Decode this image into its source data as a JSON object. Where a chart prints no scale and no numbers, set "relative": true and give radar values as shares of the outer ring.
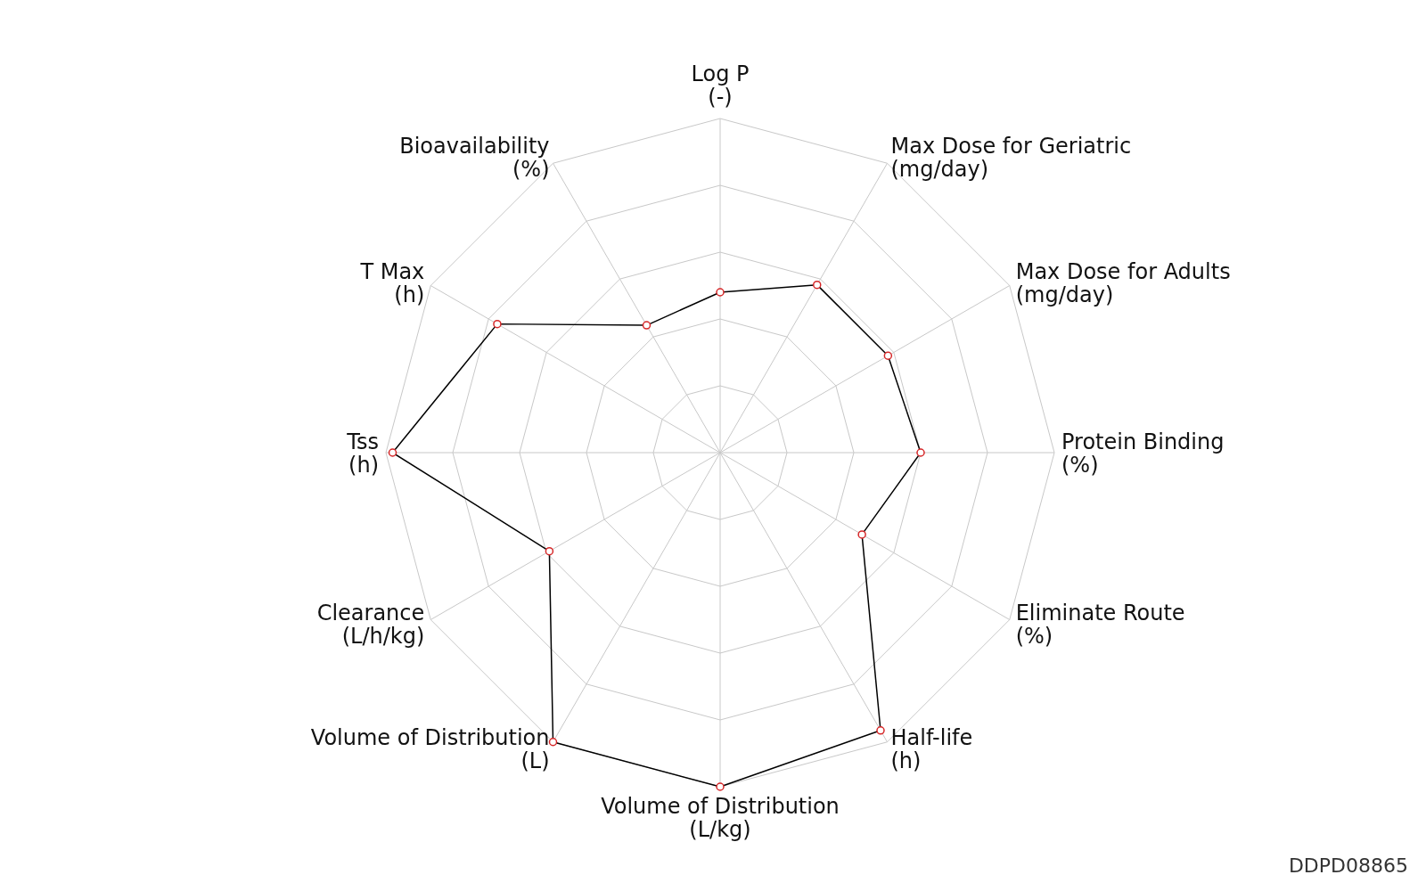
{
  "chart_data": {
    "type": "radar",
    "relative": true,
    "grid": true,
    "marker": "circle",
    "categories": [
      "Log P\n(-)",
      "Max Dose for Geriatric\n(mg/day)",
      "Max Dose for Adults\n(mg/day)",
      "Protein Binding\n(%)",
      "Eliminate Route\n(%)",
      "Half-life\n(h)",
      "Volume of Distribution\n(L/kg)",
      "Volume of Distribution\n(L)",
      "Clearance\n(L/h/kg)",
      "Tss\n(h)",
      "T Max\n(h)",
      "Bioavailability\n(%)"
    ],
    "series": [
      {
        "color": "#000000",
        "values": [
          0.48,
          0.58,
          0.58,
          0.6,
          0.49,
          0.96,
          1.0,
          1.0,
          0.59,
          0.98,
          0.77,
          0.44
        ]
      }
    ],
    "annotations": [
      "DDPD08865"
    ]
  }
}
